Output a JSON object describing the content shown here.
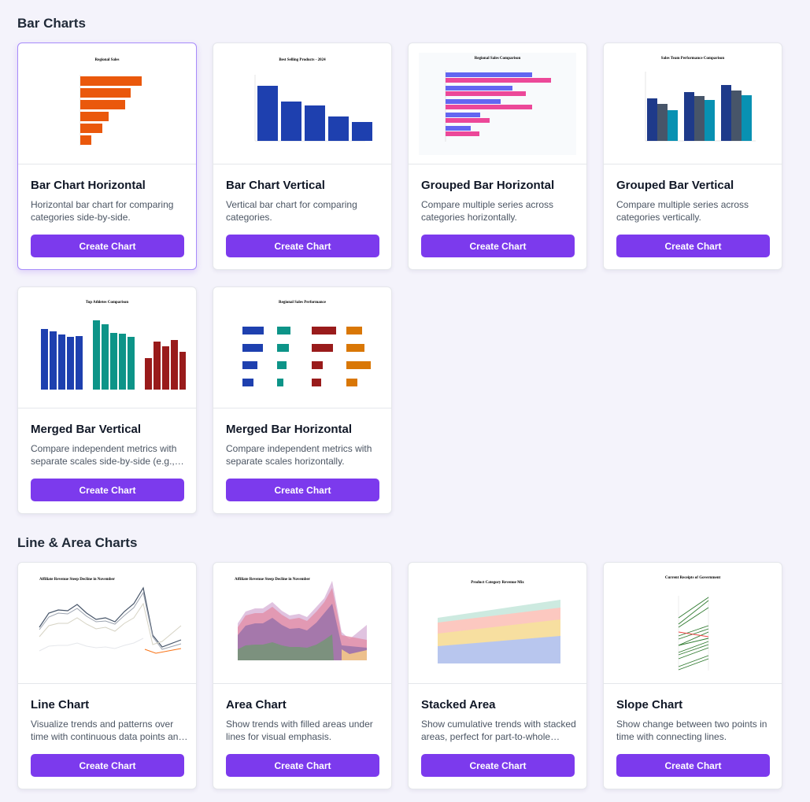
{
  "sections": [
    {
      "title": "Bar Charts",
      "cards": [
        {
          "title": "Bar Chart Horizontal",
          "description": "Horizontal bar chart for comparing categories side-by-side.",
          "button": "Create Chart",
          "thumb_title": "Regional Sales"
        },
        {
          "title": "Bar Chart Vertical",
          "description": "Vertical bar chart for comparing categories.",
          "button": "Create Chart",
          "thumb_title": "Best Selling Products - 2024"
        },
        {
          "title": "Grouped Bar Horizontal",
          "description": "Compare multiple series across categories horizontally.",
          "button": "Create Chart",
          "thumb_title": "Regional Sales Comparison"
        },
        {
          "title": "Grouped Bar Vertical",
          "description": "Compare multiple series across categories vertically.",
          "button": "Create Chart",
          "thumb_title": "Sales Team Performance Comparison"
        },
        {
          "title": "Merged Bar Vertical",
          "description": "Compare independent metrics with separate scales side-by-side (e.g., height vs weight).",
          "button": "Create Chart",
          "thumb_title": "Top Athletes Comparison"
        },
        {
          "title": "Merged Bar Horizontal",
          "description": "Compare independent metrics with separate scales horizontally.",
          "button": "Create Chart",
          "thumb_title": "Regional Sales Performance"
        }
      ]
    },
    {
      "title": "Line & Area Charts",
      "cards": [
        {
          "title": "Line Chart",
          "description": "Visualize trends and patterns over time with continuous data points and lines.",
          "button": "Create Chart",
          "thumb_title": "Affiliate Revenue Steep Decline in November"
        },
        {
          "title": "Area Chart",
          "description": "Show trends with filled areas under lines for visual emphasis.",
          "button": "Create Chart",
          "thumb_title": "Affiliate Revenue Steep Decline in November"
        },
        {
          "title": "Stacked Area",
          "description": "Show cumulative trends with stacked areas, perfect for part-to-whole relationships.",
          "button": "Create Chart",
          "thumb_title": "Product Category Revenue Mix"
        },
        {
          "title": "Slope Chart",
          "description": "Show change between two points in time with connecting lines.",
          "button": "Create Chart",
          "thumb_title": "Current Receipts of Government"
        }
      ]
    }
  ],
  "colors": {
    "accent": "#7c3aed",
    "orange": "#ea580c",
    "blue": "#1e40af",
    "teal": "#0d9488",
    "red": "#991b1b",
    "amber": "#d97706"
  }
}
